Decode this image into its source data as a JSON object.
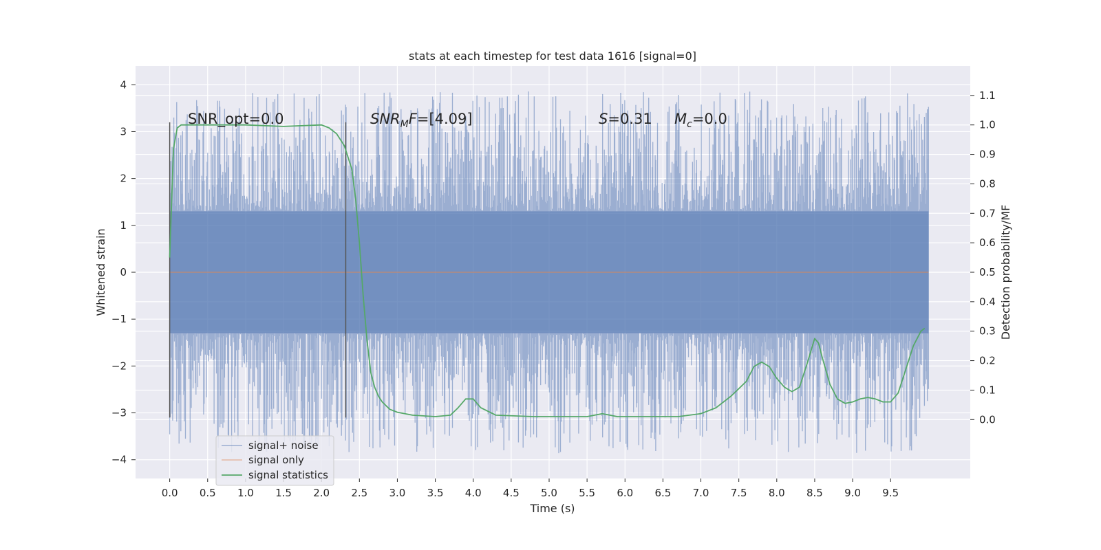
{
  "chart_data": {
    "type": "line",
    "title": "stats at each timestep for test data 1616 [signal=0]",
    "xlabel": "Time (s)",
    "ylabel": "Whitened strain",
    "y2label": "Detection probability/MF",
    "xlim": [
      -0.45,
      10.55
    ],
    "ylim": [
      -4.4,
      4.4
    ],
    "y2lim": [
      -0.2,
      1.2
    ],
    "xticks": [
      "0.0",
      "0.5",
      "1.0",
      "1.5",
      "2.0",
      "2.5",
      "3.0",
      "3.5",
      "4.0",
      "4.5",
      "5.0",
      "5.5",
      "6.0",
      "6.5",
      "7.0",
      "7.5",
      "8.0",
      "8.5",
      "9.0",
      "9.5"
    ],
    "xtick_values": [
      0.0,
      0.5,
      1.0,
      1.5,
      2.0,
      2.5,
      3.0,
      3.5,
      4.0,
      4.5,
      5.0,
      5.5,
      6.0,
      6.5,
      7.0,
      7.5,
      8.0,
      8.5,
      9.0,
      9.5
    ],
    "yticks": [
      "4",
      "3",
      "2",
      "1",
      "0",
      "−1",
      "−2",
      "−3",
      "−4"
    ],
    "ytick_values": [
      4,
      3,
      2,
      1,
      0,
      -1,
      -2,
      -3,
      -4
    ],
    "y2ticks": [
      "1.1",
      "1.0",
      "0.9",
      "0.8",
      "0.7",
      "0.6",
      "0.5",
      "0.4",
      "0.3",
      "0.2",
      "0.1",
      "0.0"
    ],
    "y2tick_values": [
      1.1,
      1.0,
      0.9,
      0.8,
      0.7,
      0.6,
      0.5,
      0.4,
      0.3,
      0.2,
      0.1,
      0.0
    ],
    "grid": true,
    "legend_position": "lower-left",
    "annotations": {
      "snr_opt": "SNR_opt=0.0",
      "snr_mf_name": "SNR",
      "snr_mf_sub": "M",
      "snr_mf_rest": "F",
      "snr_mf_value": "=[4.09]",
      "s_name": "S",
      "s_value": "=0.31",
      "mc_name": "M",
      "mc_sub": "c",
      "mc_value": "=0.0"
    },
    "vertical_markers": {
      "x": [
        0.0,
        2.32
      ],
      "y_range": [
        -3.1,
        3.2
      ]
    },
    "series": [
      {
        "name": "signal+ noise",
        "color": "#4c72b0",
        "axis": "left",
        "x_range": [
          0.0,
          10.0
        ],
        "band_envelope": [
          -1.3,
          1.3
        ],
        "spike_range": [
          -4.0,
          4.0
        ]
      },
      {
        "name": "signal only",
        "color": "#dd8452",
        "axis": "left",
        "x": [
          0.0,
          10.0
        ],
        "y": [
          0.0,
          0.0
        ]
      },
      {
        "name": "signal statistics",
        "color": "#55a868",
        "axis": "right",
        "x": [
          0.0,
          0.05,
          0.1,
          0.15,
          0.25,
          0.5,
          1.0,
          1.5,
          2.0,
          2.1,
          2.2,
          2.3,
          2.4,
          2.45,
          2.5,
          2.55,
          2.6,
          2.65,
          2.7,
          2.75,
          2.8,
          2.9,
          3.0,
          3.2,
          3.5,
          3.7,
          3.8,
          3.9,
          4.0,
          4.1,
          4.3,
          4.8,
          5.0,
          5.3,
          5.5,
          5.6,
          5.7,
          5.9,
          6.0,
          6.3,
          6.5,
          6.7,
          7.0,
          7.2,
          7.4,
          7.6,
          7.7,
          7.8,
          7.9,
          8.0,
          8.1,
          8.2,
          8.3,
          8.4,
          8.5,
          8.55,
          8.6,
          8.7,
          8.8,
          8.9,
          9.0,
          9.1,
          9.2,
          9.3,
          9.4,
          9.5,
          9.6,
          9.7,
          9.8,
          9.9,
          9.95
        ],
        "y": [
          0.55,
          0.92,
          0.99,
          1.0,
          1.0,
          1.0,
          1.0,
          0.995,
          1.0,
          0.99,
          0.97,
          0.93,
          0.85,
          0.75,
          0.6,
          0.42,
          0.27,
          0.16,
          0.11,
          0.08,
          0.06,
          0.035,
          0.025,
          0.015,
          0.01,
          0.015,
          0.04,
          0.07,
          0.07,
          0.04,
          0.015,
          0.01,
          0.01,
          0.01,
          0.01,
          0.015,
          0.02,
          0.01,
          0.01,
          0.01,
          0.01,
          0.01,
          0.02,
          0.04,
          0.08,
          0.13,
          0.18,
          0.195,
          0.18,
          0.14,
          0.11,
          0.095,
          0.11,
          0.19,
          0.275,
          0.26,
          0.21,
          0.12,
          0.07,
          0.055,
          0.06,
          0.07,
          0.075,
          0.07,
          0.06,
          0.06,
          0.09,
          0.17,
          0.25,
          0.3,
          0.31
        ]
      }
    ]
  }
}
